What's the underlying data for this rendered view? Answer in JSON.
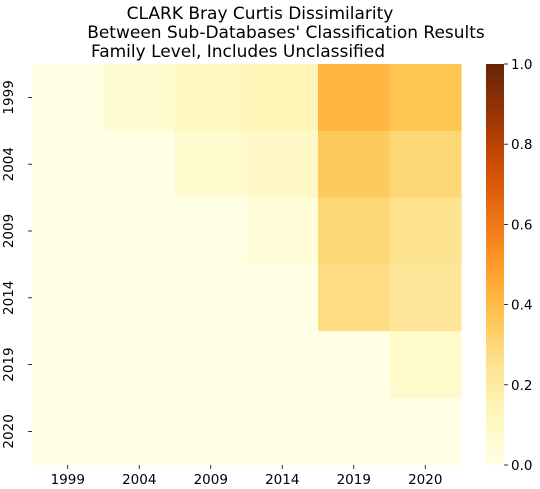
{
  "chart_data": {
    "type": "heatmap",
    "title": [
      "CLARK Bray Curtis Dissimilarity",
      "Between Sub-Databases' Classification Results",
      "Family Level, Includes Unclassified"
    ],
    "x_labels": [
      "1999",
      "2004",
      "2009",
      "2014",
      "2019",
      "2020"
    ],
    "y_labels": [
      "1999",
      "2004",
      "2009",
      "2014",
      "2019",
      "2020"
    ],
    "values": [
      [
        0.0,
        0.06,
        0.12,
        0.14,
        0.42,
        0.37
      ],
      [
        0.0,
        0.0,
        0.07,
        0.09,
        0.35,
        0.3
      ],
      [
        0.0,
        0.0,
        0.0,
        0.04,
        0.3,
        0.25
      ],
      [
        0.0,
        0.0,
        0.0,
        0.0,
        0.28,
        0.23
      ],
      [
        0.0,
        0.0,
        0.0,
        0.0,
        0.0,
        0.08
      ],
      [
        0.0,
        0.0,
        0.0,
        0.0,
        0.0,
        0.0
      ]
    ],
    "colorbar": {
      "min": 0.0,
      "max": 1.0,
      "ticks": [
        "0.0",
        "0.2",
        "0.4",
        "0.6",
        "0.8",
        "1.0"
      ],
      "colormap": "YlOrBr"
    },
    "grid": false
  }
}
